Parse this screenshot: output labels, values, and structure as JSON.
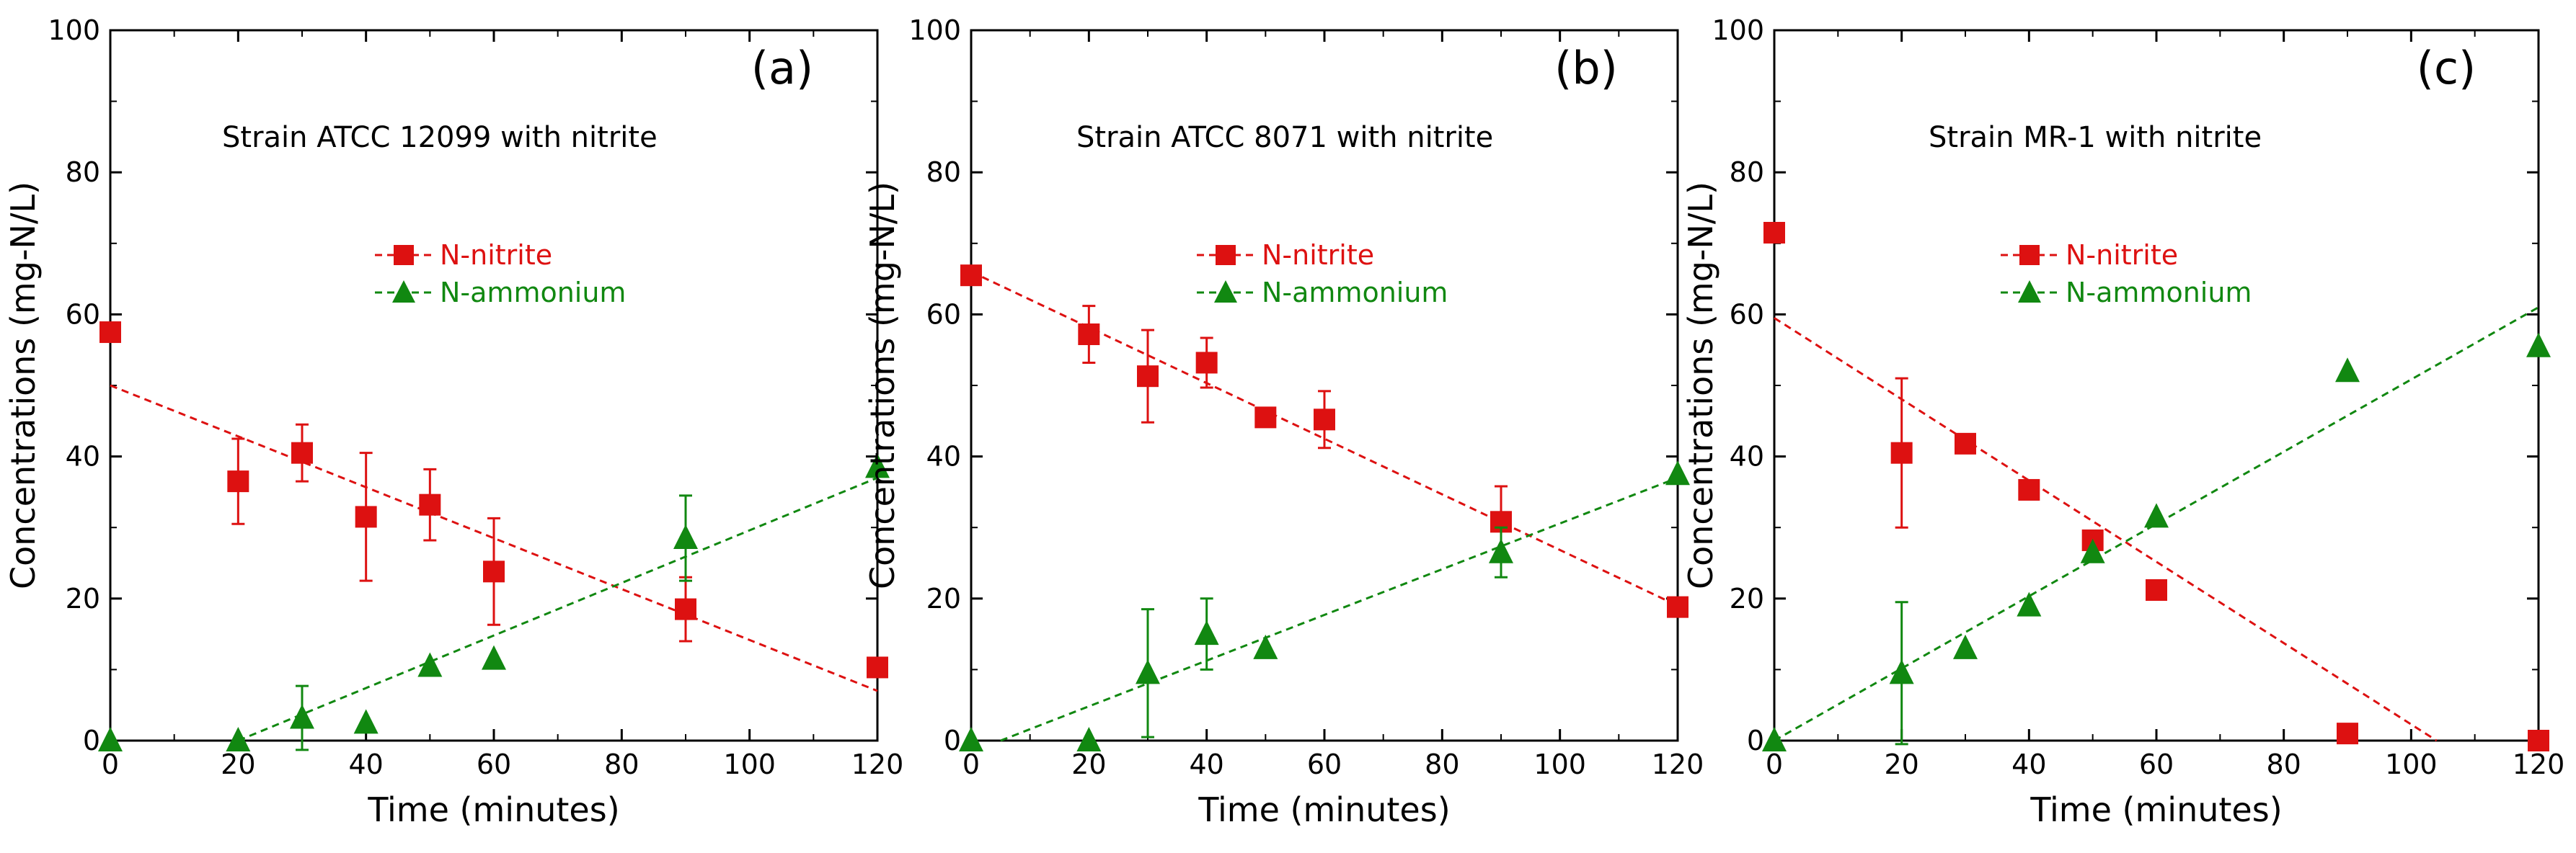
{
  "chart_data": [
    {
      "type": "scatter",
      "panel_label": "(a)",
      "subtitle": "Strain  ATCC  12099  with  nitrite",
      "xlabel": "Time  (minutes)",
      "ylabel": "Concentrations  (mg-N/L)",
      "xlim": [
        0,
        120
      ],
      "ylim": [
        0,
        100
      ],
      "xticks": [
        "0",
        "20",
        "40",
        "60",
        "80",
        "100",
        "120"
      ],
      "yticks": [
        "0",
        "20",
        "40",
        "60",
        "80",
        "100"
      ],
      "grid": false,
      "legend_position": "center",
      "series": [
        {
          "name": "N-nitrite",
          "color": "#dd1111",
          "marker": "square",
          "points": [
            {
              "x": 0,
              "y": 57.5,
              "err": 0
            },
            {
              "x": 20,
              "y": 36.5,
              "err": 6
            },
            {
              "x": 30,
              "y": 40.5,
              "err": 4
            },
            {
              "x": 40,
              "y": 31.5,
              "err": 9
            },
            {
              "x": 50,
              "y": 33.2,
              "err": 5
            },
            {
              "x": 60,
              "y": 23.8,
              "err": 7.5
            },
            {
              "x": 90,
              "y": 18.5,
              "err": 4.5
            },
            {
              "x": 120,
              "y": 10.3,
              "err": 0
            }
          ],
          "trend": [
            [
              0,
              50
            ],
            [
              120,
              7
            ]
          ]
        },
        {
          "name": "N-ammonium",
          "color": "#118811",
          "marker": "triangle",
          "points": [
            {
              "x": 0,
              "y": 0,
              "err": 0
            },
            {
              "x": 20,
              "y": 0,
              "err": 0
            },
            {
              "x": 30,
              "y": 3.2,
              "err": 4.5
            },
            {
              "x": 40,
              "y": 2.5,
              "err": 0
            },
            {
              "x": 50,
              "y": 10.5,
              "err": 0
            },
            {
              "x": 60,
              "y": 11.5,
              "err": 0
            },
            {
              "x": 90,
              "y": 28.5,
              "err": 6
            },
            {
              "x": 120,
              "y": 38.5,
              "err": 0
            }
          ],
          "trend": [
            [
              20,
              0
            ],
            [
              120,
              37
            ]
          ]
        }
      ]
    },
    {
      "type": "scatter",
      "panel_label": "(b)",
      "subtitle": "Strain  ATCC  8071  with  nitrite",
      "xlabel": "Time  (minutes)",
      "ylabel": "Concentrations  (mg-N/L)",
      "xlim": [
        0,
        120
      ],
      "ylim": [
        0,
        100
      ],
      "xticks": [
        "0",
        "20",
        "40",
        "60",
        "80",
        "100",
        "120"
      ],
      "yticks": [
        "0",
        "20",
        "40",
        "60",
        "80",
        "100"
      ],
      "grid": false,
      "legend_position": "center",
      "series": [
        {
          "name": "N-nitrite",
          "color": "#dd1111",
          "marker": "square",
          "points": [
            {
              "x": 0,
              "y": 65.5,
              "err": 0
            },
            {
              "x": 20,
              "y": 57.2,
              "err": 4
            },
            {
              "x": 30,
              "y": 51.3,
              "err": 6.5
            },
            {
              "x": 40,
              "y": 53.2,
              "err": 3.5
            },
            {
              "x": 50,
              "y": 45.5,
              "err": 0
            },
            {
              "x": 60,
              "y": 45.2,
              "err": 4
            },
            {
              "x": 90,
              "y": 30.8,
              "err": 5
            },
            {
              "x": 120,
              "y": 18.8,
              "err": 0
            }
          ],
          "trend": [
            [
              0,
              66
            ],
            [
              120,
              19
            ]
          ]
        },
        {
          "name": "N-ammonium",
          "color": "#118811",
          "marker": "triangle",
          "points": [
            {
              "x": 0,
              "y": 0,
              "err": 0
            },
            {
              "x": 20,
              "y": 0,
              "err": 0
            },
            {
              "x": 30,
              "y": 9.5,
              "err": 9
            },
            {
              "x": 40,
              "y": 15,
              "err": 5
            },
            {
              "x": 50,
              "y": 13,
              "err": 0
            },
            {
              "x": 90,
              "y": 26.5,
              "err": 3.5
            },
            {
              "x": 120,
              "y": 37.5,
              "err": 0
            }
          ],
          "trend": [
            [
              5,
              0
            ],
            [
              120,
              37
            ]
          ]
        }
      ]
    },
    {
      "type": "scatter",
      "panel_label": "(c)",
      "subtitle": "Strain  MR-1  with  nitrite",
      "xlabel": "Time  (minutes)",
      "ylabel": "Concentrations  (mg-N/L)",
      "xlim": [
        0,
        120
      ],
      "ylim": [
        0,
        100
      ],
      "xticks": [
        "0",
        "20",
        "40",
        "60",
        "80",
        "100",
        "120"
      ],
      "yticks": [
        "0",
        "20",
        "40",
        "60",
        "80",
        "100"
      ],
      "grid": false,
      "legend_position": "center",
      "series": [
        {
          "name": "N-nitrite",
          "color": "#dd1111",
          "marker": "square",
          "points": [
            {
              "x": 0,
              "y": 71.5,
              "err": 0
            },
            {
              "x": 20,
              "y": 40.5,
              "err": 10.5
            },
            {
              "x": 30,
              "y": 41.8,
              "err": 0
            },
            {
              "x": 40,
              "y": 35.3,
              "err": 0
            },
            {
              "x": 50,
              "y": 28.2,
              "err": 0
            },
            {
              "x": 60,
              "y": 21.2,
              "err": 0
            },
            {
              "x": 90,
              "y": 1,
              "err": 0
            },
            {
              "x": 120,
              "y": 0,
              "err": 0
            }
          ],
          "trend": [
            [
              0,
              59.5
            ],
            [
              104,
              0
            ]
          ]
        },
        {
          "name": "N-ammonium",
          "color": "#118811",
          "marker": "triangle",
          "points": [
            {
              "x": 0,
              "y": 0,
              "err": 0
            },
            {
              "x": 20,
              "y": 9.5,
              "err": 10
            },
            {
              "x": 30,
              "y": 13,
              "err": 0
            },
            {
              "x": 40,
              "y": 19,
              "err": 0
            },
            {
              "x": 50,
              "y": 26.5,
              "err": 0
            },
            {
              "x": 60,
              "y": 31.5,
              "err": 0
            },
            {
              "x": 90,
              "y": 52,
              "err": 0
            },
            {
              "x": 120,
              "y": 55.5,
              "err": 0
            }
          ],
          "trend": [
            [
              0,
              0
            ],
            [
              120,
              61
            ]
          ]
        }
      ]
    }
  ]
}
